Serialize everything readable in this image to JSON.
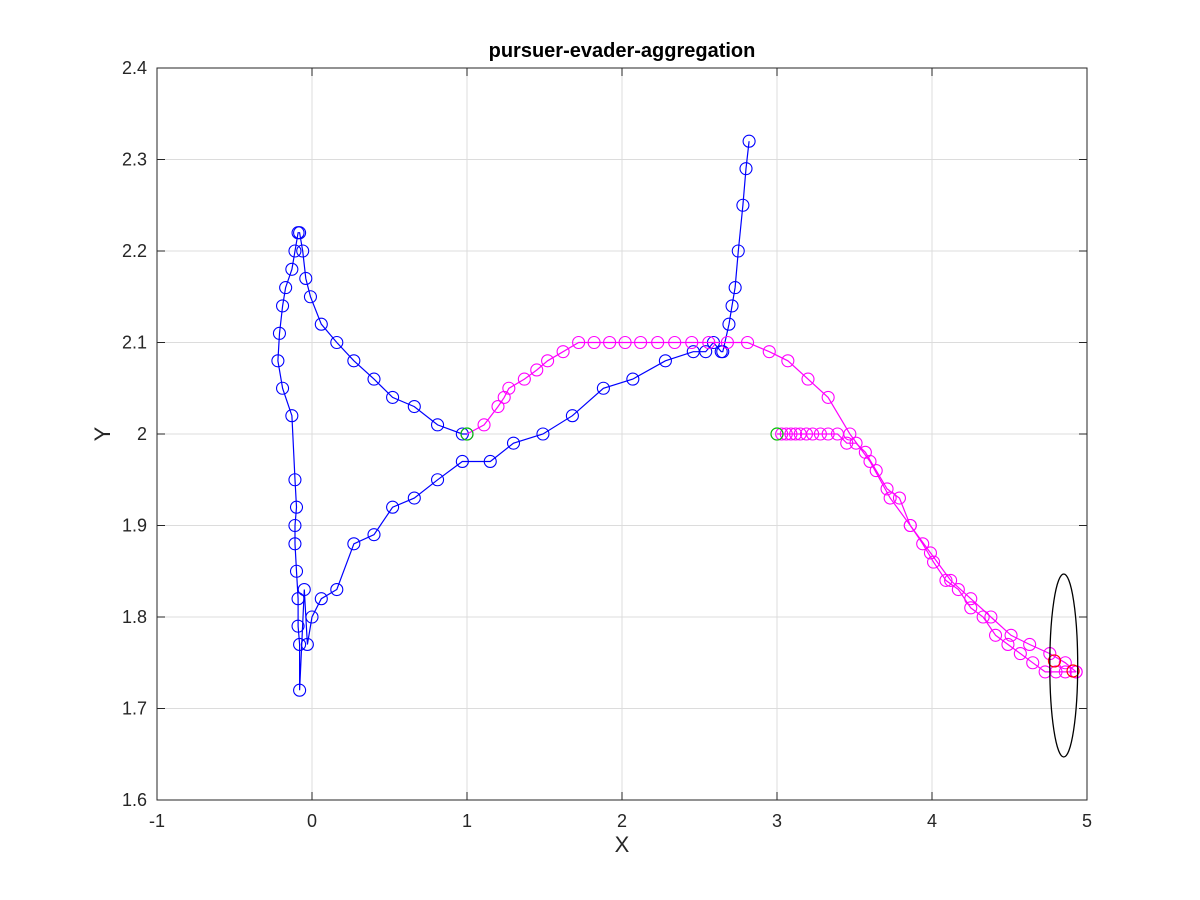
{
  "chart_data": {
    "type": "line",
    "title": "pursuer-evader-aggregation",
    "xlabel": "X",
    "ylabel": "Y",
    "xlim": [
      -1,
      5
    ],
    "ylim": [
      1.6,
      2.4
    ],
    "xticks": [
      -1,
      0,
      1,
      2,
      3,
      4,
      5
    ],
    "yticks": [
      1.6,
      1.7,
      1.8,
      1.9,
      2.0,
      2.1,
      2.2,
      2.3,
      2.4
    ],
    "xtick_labels": [
      "-1",
      "0",
      "1",
      "2",
      "3",
      "4",
      "5"
    ],
    "ytick_labels": [
      "1.6",
      "1.7",
      "1.8",
      "1.9",
      "2",
      "2.1",
      "2.2",
      "2.3",
      "2.4"
    ],
    "grid": true,
    "legend": "none",
    "series": [
      {
        "color": "#0000ff",
        "marker": "circle",
        "x": [
          1.0,
          0.97,
          0.81,
          0.66,
          0.52,
          0.4,
          0.27,
          0.16,
          0.06,
          -0.01,
          -0.04,
          -0.06,
          -0.08,
          -0.09,
          -0.11,
          -0.13,
          -0.17,
          -0.19,
          -0.21,
          -0.22,
          -0.19,
          -0.13,
          -0.11,
          -0.1,
          -0.11,
          -0.11,
          -0.1,
          -0.09,
          -0.09,
          -0.08,
          -0.08,
          -0.05,
          -0.03,
          0.0,
          0.06,
          0.16,
          0.27,
          0.4,
          0.52,
          0.66,
          0.81,
          0.97,
          1.15,
          1.3,
          1.49,
          1.68,
          1.88,
          2.07,
          2.28,
          2.46,
          2.54,
          2.59,
          2.64,
          2.65,
          2.69,
          2.71,
          2.73,
          2.75,
          2.78,
          2.8,
          2.82
        ],
        "y": [
          2.0,
          2.0,
          2.01,
          2.03,
          2.04,
          2.06,
          2.08,
          2.1,
          2.12,
          2.15,
          2.17,
          2.2,
          2.22,
          2.22,
          2.2,
          2.18,
          2.16,
          2.14,
          2.11,
          2.08,
          2.05,
          2.02,
          1.95,
          1.92,
          1.9,
          1.88,
          1.85,
          1.82,
          1.79,
          1.77,
          1.72,
          1.83,
          1.77,
          1.8,
          1.82,
          1.83,
          1.88,
          1.89,
          1.92,
          1.93,
          1.95,
          1.97,
          1.97,
          1.99,
          2.0,
          2.02,
          2.05,
          2.06,
          2.08,
          2.09,
          2.09,
          2.1,
          2.09,
          2.09,
          2.12,
          2.14,
          2.16,
          2.2,
          2.25,
          2.29,
          2.32
        ]
      },
      {
        "color": "#ff00ff",
        "marker": "circle",
        "x": [
          1.0,
          1.11,
          1.2,
          1.24,
          1.27,
          1.37,
          1.45,
          1.52,
          1.62,
          1.72,
          1.82,
          1.92,
          2.02,
          2.12,
          2.23,
          2.34,
          2.45,
          2.56,
          2.68,
          2.81,
          2.95,
          3.07,
          3.2,
          3.33,
          3.47,
          3.6,
          3.73,
          3.86,
          3.99,
          4.12,
          4.25,
          4.38,
          4.51,
          4.63,
          4.76,
          4.86,
          4.93
        ],
        "y": [
          2.0,
          2.01,
          2.03,
          2.04,
          2.05,
          2.06,
          2.07,
          2.08,
          2.09,
          2.1,
          2.1,
          2.1,
          2.1,
          2.1,
          2.1,
          2.1,
          2.1,
          2.1,
          2.1,
          2.1,
          2.09,
          2.08,
          2.06,
          2.04,
          2.0,
          1.97,
          1.93,
          1.9,
          1.87,
          1.84,
          1.82,
          1.8,
          1.78,
          1.77,
          1.76,
          1.75,
          1.74
        ]
      },
      {
        "color": "#ff00ff",
        "marker": "circle",
        "x": [
          3.0,
          3.03,
          3.06,
          3.09,
          3.12,
          3.15,
          3.19,
          3.23,
          3.28,
          3.33,
          3.39,
          3.45,
          3.51,
          3.57,
          3.64,
          3.71,
          3.79,
          3.86,
          3.94,
          4.01,
          4.09,
          4.17,
          4.25,
          4.33,
          4.41,
          4.49,
          4.57,
          4.65,
          4.73,
          4.8,
          4.86,
          4.93
        ],
        "y": [
          2.0,
          2.0,
          2.0,
          2.0,
          2.0,
          2.0,
          2.0,
          2.0,
          2.0,
          2.0,
          2.0,
          1.99,
          1.99,
          1.98,
          1.96,
          1.94,
          1.93,
          1.9,
          1.88,
          1.86,
          1.84,
          1.83,
          1.81,
          1.8,
          1.78,
          1.77,
          1.76,
          1.75,
          1.74,
          1.74,
          1.74,
          1.74
        ]
      }
    ],
    "markers": [
      {
        "color": "#00cc00",
        "x": 1.0,
        "y": 2.0
      },
      {
        "color": "#00cc00",
        "x": 3.0,
        "y": 2.0
      },
      {
        "color": "#ff0000",
        "x": 4.79,
        "y": 1.752
      },
      {
        "color": "#ff0000",
        "x": 4.91,
        "y": 1.741
      }
    ],
    "ellipse": {
      "color": "#000000",
      "cx": 4.85,
      "cy": 1.747,
      "rx": 0.09,
      "ry": 0.1
    }
  }
}
